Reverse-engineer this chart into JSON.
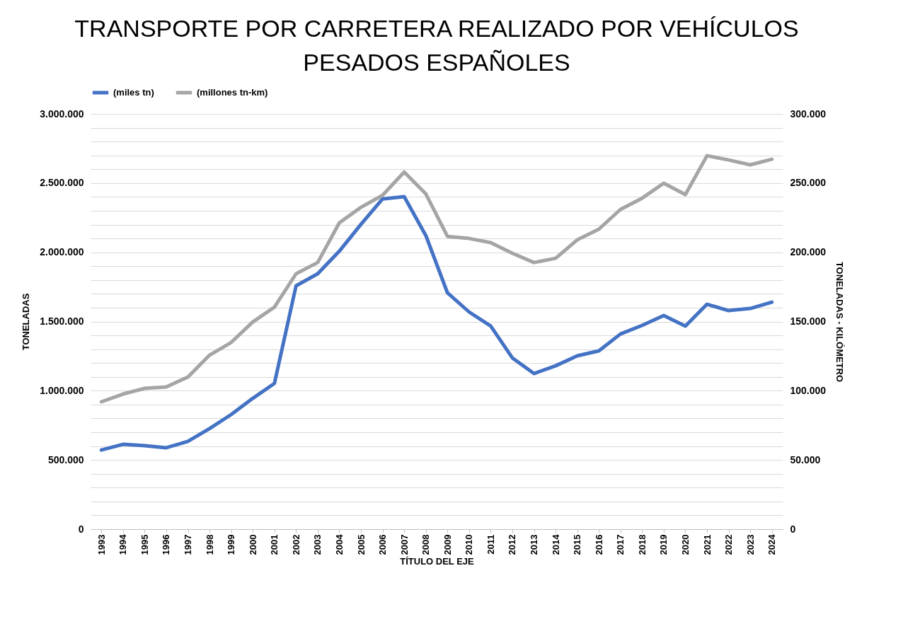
{
  "chart_data": {
    "type": "line",
    "title": "TRANSPORTE POR CARRETERA REALIZADO POR VEHÍCULOS PESADOS ESPAÑOLES",
    "xlabel": "TÍTULO DEL EJE",
    "ylabel": "TONELADAS",
    "y2label": "TONELADAS - KILÓMETRO",
    "categories": [
      "1993",
      "1994",
      "1995",
      "1996",
      "1997",
      "1998",
      "1999",
      "2000",
      "2001",
      "2002",
      "2003",
      "2004",
      "2005",
      "2006",
      "2007",
      "2008",
      "2009",
      "2010",
      "2011",
      "2012",
      "2013",
      "2014",
      "2015",
      "2016",
      "2017",
      "2018",
      "2019",
      "2020",
      "2021",
      "2022",
      "2023",
      "2024"
    ],
    "series": [
      {
        "name": "(miles tn)",
        "color": "#4472c4",
        "values": [
          572000,
          613000,
          603000,
          588000,
          634000,
          726000,
          828000,
          945000,
          1053000,
          1758000,
          1845000,
          2008000,
          2202000,
          2386000,
          2402000,
          2121000,
          1707000,
          1569000,
          1467000,
          1237000,
          1124000,
          1180000,
          1252000,
          1288000,
          1410000,
          1472000,
          1543000,
          1467000,
          1625000,
          1579000,
          1594000,
          1640000
        ]
      },
      {
        "name": "(millones tn-km)",
        "color": "#a5a5a5",
        "axis": "y2",
        "values": [
          92000,
          97600,
          101700,
          102700,
          109900,
          125700,
          134900,
          149700,
          160400,
          184500,
          192600,
          221300,
          232500,
          241200,
          258000,
          242200,
          211500,
          210000,
          207000,
          199300,
          192600,
          195700,
          209000,
          216700,
          231000,
          239100,
          249900,
          241700,
          269800,
          266700,
          263200,
          267200
        ]
      }
    ],
    "ylim": [
      0,
      3000000
    ],
    "yticks": [
      0,
      {
        "value": 100000,
        "label": null
      },
      {
        "value": 200000,
        "label": null
      },
      {
        "value": 300000,
        "label": null
      },
      {
        "value": 400000,
        "label": null
      },
      {
        "value": 500000,
        "label": "500.000"
      },
      {
        "value": 600000,
        "label": null
      },
      {
        "value": 700000,
        "label": null
      },
      {
        "value": 800000,
        "label": null
      },
      {
        "value": 900000,
        "label": null
      },
      {
        "value": 1000000,
        "label": "1.000.000"
      },
      {
        "value": 1100000,
        "label": null
      },
      {
        "value": 1200000,
        "label": null
      },
      {
        "value": 1300000,
        "label": null
      },
      {
        "value": 1400000,
        "label": null
      },
      {
        "value": 1500000,
        "label": "1.500.000"
      },
      {
        "value": 1600000,
        "label": null
      },
      {
        "value": 1700000,
        "label": null
      },
      {
        "value": 1800000,
        "label": null
      },
      {
        "value": 1900000,
        "label": null
      },
      {
        "value": 2000000,
        "label": "2.000.000"
      },
      {
        "value": 2100000,
        "label": null
      },
      {
        "value": 2200000,
        "label": null
      },
      {
        "value": 2300000,
        "label": null
      },
      {
        "value": 2400000,
        "label": null
      },
      {
        "value": 2500000,
        "label": "2.500.000"
      },
      {
        "value": 2600000,
        "label": null
      },
      {
        "value": 2700000,
        "label": null
      },
      {
        "value": 2800000,
        "label": null
      },
      {
        "value": 2900000,
        "label": null
      },
      {
        "value": 3000000,
        "label": "3.000.000"
      }
    ],
    "y2lim": [
      0,
      300000
    ],
    "y2ticks": [
      0,
      {
        "value": 50000,
        "label": "50.000"
      },
      {
        "value": 100000,
        "label": "100.000"
      },
      {
        "value": 150000,
        "label": "150.000"
      },
      {
        "value": 200000,
        "label": "200.000"
      },
      {
        "value": 250000,
        "label": "250.000"
      },
      {
        "value": 300000,
        "label": "300.000"
      }
    ],
    "grid": "y",
    "legend": "top",
    "marker": "none",
    "line_style": "solid"
  }
}
